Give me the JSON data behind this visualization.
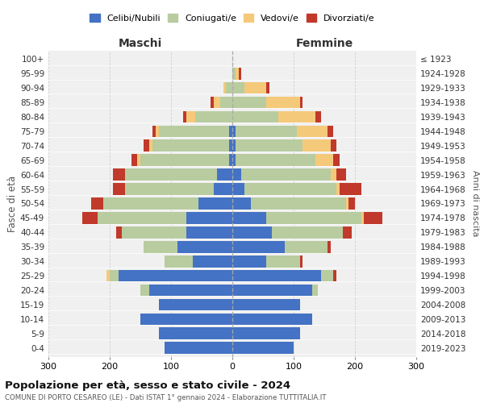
{
  "age_groups": [
    "0-4",
    "5-9",
    "10-14",
    "15-19",
    "20-24",
    "25-29",
    "30-34",
    "35-39",
    "40-44",
    "45-49",
    "50-54",
    "55-59",
    "60-64",
    "65-69",
    "70-74",
    "75-79",
    "80-84",
    "85-89",
    "90-94",
    "95-99",
    "100+"
  ],
  "birth_years": [
    "2019-2023",
    "2014-2018",
    "2009-2013",
    "2004-2008",
    "1999-2003",
    "1994-1998",
    "1989-1993",
    "1984-1988",
    "1979-1983",
    "1974-1978",
    "1969-1973",
    "1964-1968",
    "1959-1963",
    "1954-1958",
    "1949-1953",
    "1944-1948",
    "1939-1943",
    "1934-1938",
    "1929-1933",
    "1924-1928",
    "≤ 1923"
  ],
  "males": {
    "celibi": [
      110,
      120,
      150,
      120,
      135,
      185,
      65,
      90,
      75,
      75,
      55,
      30,
      25,
      5,
      5,
      5,
      0,
      0,
      0,
      0,
      0
    ],
    "coniugati": [
      0,
      0,
      0,
      0,
      15,
      15,
      45,
      55,
      105,
      145,
      155,
      145,
      150,
      145,
      125,
      115,
      60,
      20,
      10,
      0,
      0
    ],
    "vedovi": [
      0,
      0,
      0,
      0,
      0,
      5,
      0,
      0,
      0,
      0,
      0,
      0,
      0,
      5,
      5,
      5,
      15,
      10,
      5,
      0,
      0
    ],
    "divorziati": [
      0,
      0,
      0,
      0,
      0,
      0,
      0,
      0,
      10,
      25,
      20,
      20,
      20,
      10,
      10,
      5,
      5,
      5,
      0,
      0,
      0
    ]
  },
  "females": {
    "nubili": [
      100,
      110,
      130,
      110,
      130,
      145,
      55,
      85,
      65,
      55,
      30,
      20,
      15,
      5,
      5,
      5,
      0,
      0,
      0,
      0,
      0
    ],
    "coniugate": [
      0,
      0,
      0,
      0,
      10,
      20,
      55,
      70,
      115,
      155,
      155,
      150,
      145,
      130,
      110,
      100,
      75,
      55,
      20,
      5,
      0
    ],
    "vedove": [
      0,
      0,
      0,
      0,
      0,
      0,
      0,
      0,
      0,
      5,
      5,
      5,
      10,
      30,
      45,
      50,
      60,
      55,
      35,
      5,
      0
    ],
    "divorziate": [
      0,
      0,
      0,
      0,
      0,
      5,
      5,
      5,
      15,
      30,
      10,
      35,
      15,
      10,
      10,
      10,
      10,
      5,
      5,
      5,
      0
    ]
  },
  "colors": {
    "celibi": "#4472c4",
    "coniugati": "#b8cca0",
    "vedovi": "#f5c97a",
    "divorziati": "#c0392b"
  },
  "xlim": 300,
  "title": "Popolazione per età, sesso e stato civile - 2024",
  "subtitle": "COMUNE DI PORTO CESAREO (LE) - Dati ISTAT 1° gennaio 2024 - Elaborazione TUTTITALIA.IT",
  "ylabel_left": "Fasce di età",
  "ylabel_right": "Anni di nascita",
  "xlabel_left": "Maschi",
  "xlabel_right": "Femmine",
  "bg_color": "#f0f0f0",
  "grid_color": "#cccccc"
}
